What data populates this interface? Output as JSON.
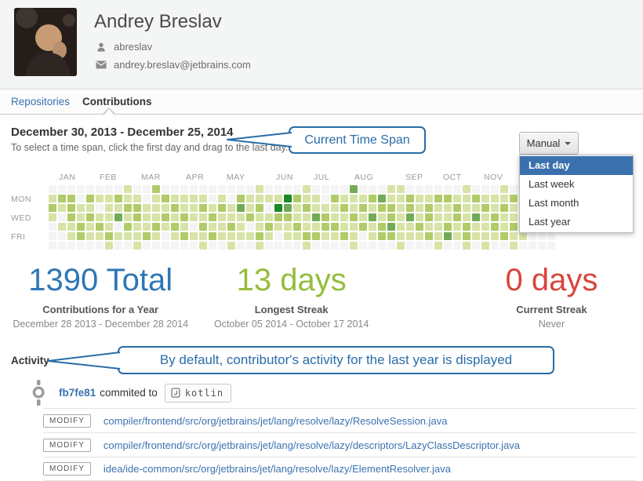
{
  "header": {
    "name": "Andrey Breslav",
    "username": "abreslav",
    "email": "andrey.breslav@jetbrains.com"
  },
  "tabs": {
    "repositories": "Repositories",
    "contributions": "Contributions"
  },
  "timespan": {
    "title": "December 30, 2013 - December 25, 2014",
    "hint": "To select a time span, click the first day and drag to the last day."
  },
  "annotations": {
    "timespan_callout": "Current Time Span",
    "activity_callout": "By default, contributor's activity for the last year is displayed"
  },
  "manual_button": {
    "label": "Manual"
  },
  "dropdown": {
    "items": [
      "Last day",
      "Last week",
      "Last month",
      "Last year"
    ],
    "selected": "Last day"
  },
  "heatmap": {
    "months": [
      "JAN",
      "FEB",
      "MAR",
      "APR",
      "MAY",
      "JUN",
      "JUL",
      "AUG",
      "SEP",
      "OCT",
      "NOV"
    ],
    "day_labels": [
      "MON",
      "WED",
      "FRI"
    ],
    "palette": [
      "#f4f4f4",
      "#d7e3a7",
      "#b0cb68",
      "#73aa57",
      "#1c8828"
    ],
    "cells": [
      "000000001002000000000010000100003000110000001000100000",
      "122021121101211110102111142110211123112112211211121100",
      "212110112211121121213120431211121212212121121121211000",
      "102121131211212112111211221132112131213121121312112000",
      "011212102112121021121012112112211212311211212112121000",
      "001211211121012112111121011221121012211121312111211000",
      "000000100100000010010010000100001000010001001010010000"
    ]
  },
  "stats": [
    {
      "value": "1390 Total",
      "label": "Contributions for a Year",
      "sub": "December 28 2013 - December 28 2014",
      "color": "#2f76b5"
    },
    {
      "value": "13 days",
      "label": "Longest Streak",
      "sub": "October 05 2014 - October 17 2014",
      "color": "#95bd3c"
    },
    {
      "value": "0 days",
      "label": "Current Streak",
      "sub": "Never",
      "color": "#d9453a"
    }
  ],
  "activity": {
    "title": "Activity",
    "commit": {
      "hash": "fb7fe81",
      "action": "commited to",
      "repo": "kotlin"
    },
    "files": [
      {
        "op": "MODIFY",
        "path": "compiler/frontend/src/org/jetbrains/jet/lang/resolve/lazy/ResolveSession.java"
      },
      {
        "op": "MODIFY",
        "path": "compiler/frontend/src/org/jetbrains/jet/lang/resolve/lazy/descriptors/LazyClassDescriptor.java"
      },
      {
        "op": "MODIFY",
        "path": "idea/ide-common/src/org/jetbrains/jet/lang/resolve/lazy/ElementResolver.java"
      }
    ]
  }
}
